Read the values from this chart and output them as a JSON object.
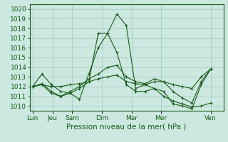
{
  "background_color": "#cce8e0",
  "grid_color": "#99ccbb",
  "line_color": "#1a5c1a",
  "xlabel": "Pression niveau de la mer( hPa )",
  "xlabel_fontsize": 7.5,
  "tick_label_fontsize": 6.5,
  "ylim": [
    1009.5,
    1020.5
  ],
  "yticks": [
    1010,
    1011,
    1012,
    1013,
    1014,
    1015,
    1016,
    1017,
    1018,
    1019,
    1020
  ],
  "day_labels": [
    "Lun",
    "Jeu",
    "Sam",
    "Dim",
    "Mar",
    "Mer",
    "Ven"
  ],
  "day_positions": [
    0,
    2,
    4,
    7,
    10,
    13,
    18
  ],
  "xlim": [
    -0.3,
    19.3
  ],
  "series": [
    [
      1012.0,
      1013.3,
      1012.2,
      1011.5,
      1011.3,
      1010.7,
      1013.3,
      1016.0,
      1017.5,
      1019.5,
      1018.3,
      1011.8,
      1012.2,
      1011.8,
      1011.5,
      1010.2,
      1010.0,
      1009.7,
      1012.2,
      1013.8
    ],
    [
      1012.0,
      1012.2,
      1011.3,
      1011.0,
      1011.3,
      1011.8,
      1012.5,
      1017.5,
      1017.5,
      1015.5,
      1012.2,
      1011.5,
      1011.5,
      1011.8,
      1011.0,
      1010.5,
      1010.2,
      1009.9,
      1010.0,
      1010.3
    ],
    [
      1012.0,
      1012.3,
      1011.5,
      1011.0,
      1011.5,
      1012.0,
      1012.8,
      1013.3,
      1014.0,
      1014.2,
      1013.0,
      1012.5,
      1012.3,
      1012.8,
      1012.5,
      1011.5,
      1010.8,
      1010.3,
      1012.5,
      1013.8
    ],
    [
      1012.0,
      1012.2,
      1012.0,
      1012.0,
      1012.2,
      1012.3,
      1012.5,
      1012.8,
      1013.0,
      1013.2,
      1012.5,
      1012.3,
      1012.2,
      1012.5,
      1012.5,
      1012.2,
      1012.0,
      1011.8,
      1013.0,
      1013.8
    ]
  ]
}
